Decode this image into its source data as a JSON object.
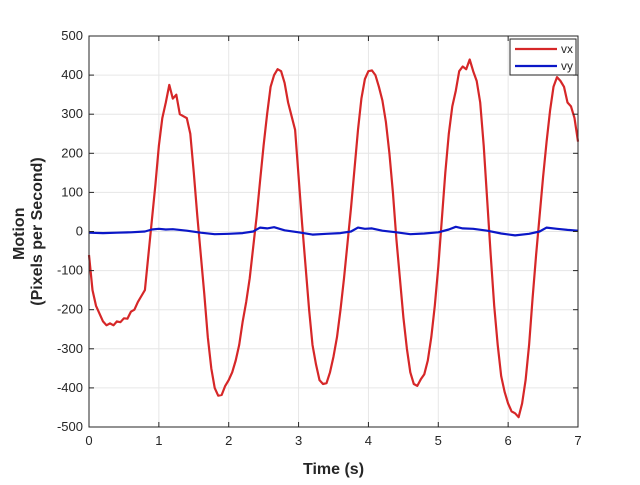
{
  "chart_data": {
    "type": "line",
    "title": "",
    "xlabel": "Time (s)",
    "ylabel": [
      "Motion",
      "(Pixels per Second)"
    ],
    "xlim": [
      0,
      7
    ],
    "ylim": [
      -500,
      500
    ],
    "xticks": [
      0,
      1,
      2,
      3,
      4,
      5,
      6,
      7
    ],
    "yticks": [
      -500,
      -400,
      -300,
      -200,
      -100,
      0,
      100,
      200,
      300,
      400,
      500
    ],
    "grid": true,
    "legend": "top-right",
    "series": [
      {
        "name": "vx",
        "color": "#d62728",
        "points": [
          [
            0.0,
            -60
          ],
          [
            0.05,
            -150
          ],
          [
            0.1,
            -190
          ],
          [
            0.2,
            -230
          ],
          [
            0.25,
            -240
          ],
          [
            0.3,
            -235
          ],
          [
            0.35,
            -240
          ],
          [
            0.4,
            -230
          ],
          [
            0.45,
            -232
          ],
          [
            0.5,
            -222
          ],
          [
            0.55,
            -223
          ],
          [
            0.6,
            -205
          ],
          [
            0.65,
            -200
          ],
          [
            0.7,
            -180
          ],
          [
            0.75,
            -165
          ],
          [
            0.8,
            -150
          ],
          [
            0.85,
            -60
          ],
          [
            0.9,
            30
          ],
          [
            0.95,
            120
          ],
          [
            1.0,
            220
          ],
          [
            1.05,
            290
          ],
          [
            1.1,
            330
          ],
          [
            1.15,
            375
          ],
          [
            1.2,
            340
          ],
          [
            1.25,
            350
          ],
          [
            1.3,
            300
          ],
          [
            1.35,
            295
          ],
          [
            1.4,
            290
          ],
          [
            1.45,
            250
          ],
          [
            1.5,
            150
          ],
          [
            1.55,
            40
          ],
          [
            1.6,
            -60
          ],
          [
            1.65,
            -160
          ],
          [
            1.7,
            -270
          ],
          [
            1.75,
            -350
          ],
          [
            1.8,
            -400
          ],
          [
            1.85,
            -420
          ],
          [
            1.9,
            -418
          ],
          [
            1.95,
            -395
          ],
          [
            2.0,
            -380
          ],
          [
            2.05,
            -360
          ],
          [
            2.1,
            -330
          ],
          [
            2.15,
            -290
          ],
          [
            2.2,
            -230
          ],
          [
            2.25,
            -180
          ],
          [
            2.3,
            -120
          ],
          [
            2.35,
            -40
          ],
          [
            2.4,
            40
          ],
          [
            2.45,
            130
          ],
          [
            2.5,
            220
          ],
          [
            2.55,
            300
          ],
          [
            2.6,
            370
          ],
          [
            2.65,
            400
          ],
          [
            2.7,
            415
          ],
          [
            2.75,
            410
          ],
          [
            2.8,
            380
          ],
          [
            2.85,
            330
          ],
          [
            2.9,
            295
          ],
          [
            2.95,
            260
          ],
          [
            3.0,
            140
          ],
          [
            3.05,
            20
          ],
          [
            3.1,
            -90
          ],
          [
            3.15,
            -200
          ],
          [
            3.2,
            -290
          ],
          [
            3.25,
            -340
          ],
          [
            3.3,
            -380
          ],
          [
            3.35,
            -390
          ],
          [
            3.4,
            -388
          ],
          [
            3.45,
            -360
          ],
          [
            3.5,
            -320
          ],
          [
            3.55,
            -270
          ],
          [
            3.6,
            -200
          ],
          [
            3.65,
            -120
          ],
          [
            3.7,
            -30
          ],
          [
            3.75,
            60
          ],
          [
            3.8,
            160
          ],
          [
            3.85,
            260
          ],
          [
            3.9,
            340
          ],
          [
            3.95,
            390
          ],
          [
            4.0,
            410
          ],
          [
            4.05,
            412
          ],
          [
            4.1,
            400
          ],
          [
            4.15,
            370
          ],
          [
            4.2,
            335
          ],
          [
            4.25,
            280
          ],
          [
            4.3,
            200
          ],
          [
            4.35,
            100
          ],
          [
            4.4,
            -20
          ],
          [
            4.45,
            -120
          ],
          [
            4.5,
            -220
          ],
          [
            4.55,
            -300
          ],
          [
            4.6,
            -360
          ],
          [
            4.65,
            -390
          ],
          [
            4.7,
            -395
          ],
          [
            4.75,
            -378
          ],
          [
            4.8,
            -365
          ],
          [
            4.85,
            -330
          ],
          [
            4.9,
            -270
          ],
          [
            4.95,
            -190
          ],
          [
            5.0,
            -90
          ],
          [
            5.05,
            30
          ],
          [
            5.1,
            150
          ],
          [
            5.15,
            250
          ],
          [
            5.2,
            320
          ],
          [
            5.25,
            360
          ],
          [
            5.3,
            410
          ],
          [
            5.35,
            422
          ],
          [
            5.4,
            415
          ],
          [
            5.45,
            440
          ],
          [
            5.5,
            410
          ],
          [
            5.55,
            385
          ],
          [
            5.6,
            330
          ],
          [
            5.65,
            220
          ],
          [
            5.7,
            80
          ],
          [
            5.75,
            -60
          ],
          [
            5.8,
            -190
          ],
          [
            5.85,
            -290
          ],
          [
            5.9,
            -370
          ],
          [
            5.95,
            -410
          ],
          [
            6.0,
            -440
          ],
          [
            6.05,
            -460
          ],
          [
            6.1,
            -465
          ],
          [
            6.15,
            -475
          ],
          [
            6.2,
            -440
          ],
          [
            6.25,
            -380
          ],
          [
            6.3,
            -290
          ],
          [
            6.35,
            -170
          ],
          [
            6.4,
            -60
          ],
          [
            6.45,
            40
          ],
          [
            6.5,
            140
          ],
          [
            6.55,
            230
          ],
          [
            6.6,
            310
          ],
          [
            6.65,
            370
          ],
          [
            6.7,
            395
          ],
          [
            6.75,
            385
          ],
          [
            6.8,
            370
          ],
          [
            6.85,
            330
          ],
          [
            6.9,
            320
          ],
          [
            6.95,
            290
          ],
          [
            7.0,
            230
          ]
        ]
      },
      {
        "name": "vy",
        "color": "#0b17c7",
        "points": [
          [
            0.0,
            -3
          ],
          [
            0.2,
            -4
          ],
          [
            0.4,
            -3
          ],
          [
            0.6,
            -2
          ],
          [
            0.8,
            0
          ],
          [
            0.9,
            5
          ],
          [
            1.0,
            7
          ],
          [
            1.1,
            5
          ],
          [
            1.2,
            6
          ],
          [
            1.4,
            2
          ],
          [
            1.6,
            -3
          ],
          [
            1.8,
            -7
          ],
          [
            2.0,
            -6
          ],
          [
            2.2,
            -4
          ],
          [
            2.35,
            0
          ],
          [
            2.45,
            10
          ],
          [
            2.55,
            8
          ],
          [
            2.65,
            11
          ],
          [
            2.8,
            3
          ],
          [
            3.0,
            -2
          ],
          [
            3.2,
            -8
          ],
          [
            3.4,
            -6
          ],
          [
            3.6,
            -4
          ],
          [
            3.75,
            0
          ],
          [
            3.85,
            10
          ],
          [
            3.95,
            7
          ],
          [
            4.05,
            8
          ],
          [
            4.2,
            2
          ],
          [
            4.4,
            -2
          ],
          [
            4.6,
            -7
          ],
          [
            4.8,
            -5
          ],
          [
            5.0,
            -2
          ],
          [
            5.15,
            5
          ],
          [
            5.25,
            12
          ],
          [
            5.35,
            8
          ],
          [
            5.5,
            7
          ],
          [
            5.7,
            2
          ],
          [
            5.9,
            -5
          ],
          [
            6.1,
            -10
          ],
          [
            6.3,
            -6
          ],
          [
            6.45,
            0
          ],
          [
            6.55,
            10
          ],
          [
            6.7,
            7
          ],
          [
            6.85,
            4
          ],
          [
            7.0,
            2
          ]
        ]
      }
    ]
  }
}
